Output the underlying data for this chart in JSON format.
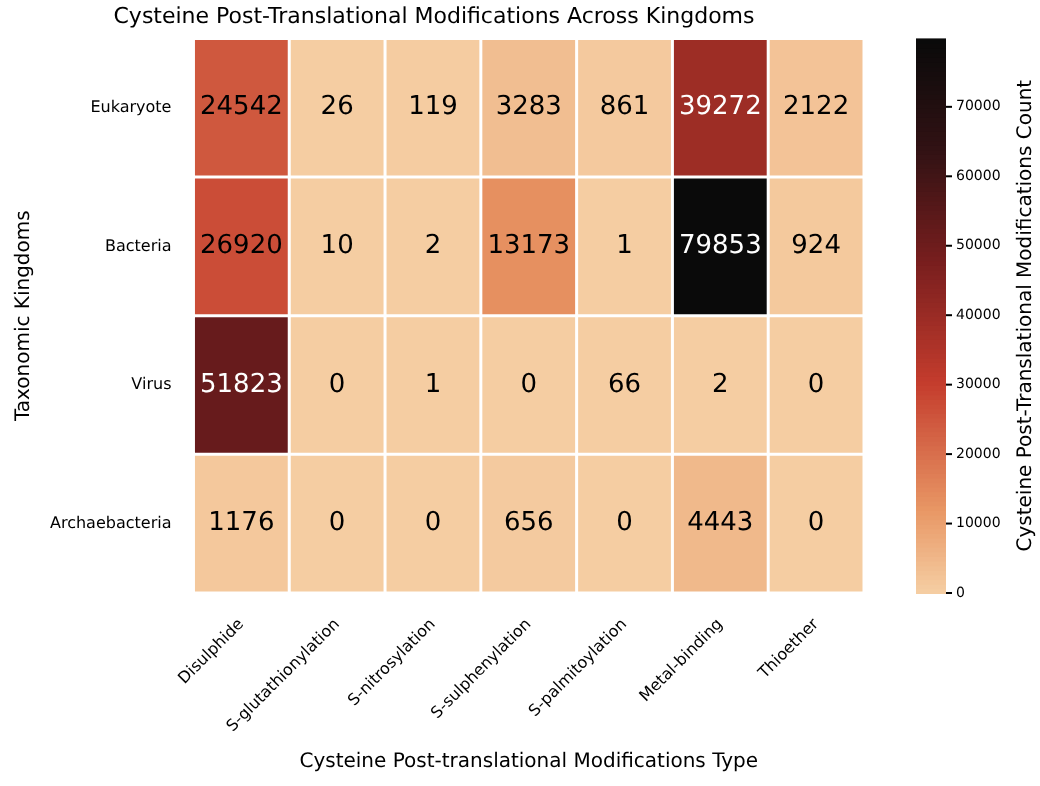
{
  "chart_data": {
    "type": "heatmap",
    "title": "Cysteine Post-Translational Modifications Across Kingdoms",
    "xlabel": "Cysteine Post-translational Modifications Type",
    "ylabel": "Taxonomic Kingdoms",
    "clabel": "Cysteine Post-Translational Modifications Count",
    "categories": [
      "Disulphide",
      "S-glutathionylation",
      "S-nitrosylation",
      "S-sulphenylation",
      "S-palmitoylation",
      "Metal-binding",
      "Thioether"
    ],
    "y_categories": [
      "Eukaryote",
      "Bacteria",
      "Virus",
      "Archaebacteria"
    ],
    "cells": [
      [
        24542,
        26,
        119,
        3283,
        861,
        39272,
        2122
      ],
      [
        26920,
        10,
        2,
        13173,
        1,
        79853,
        924
      ],
      [
        51823,
        0,
        1,
        0,
        66,
        2,
        0
      ],
      [
        1176,
        0,
        0,
        656,
        0,
        4443,
        0
      ]
    ],
    "clim": [
      0,
      79853
    ],
    "cticks": [
      0,
      10000,
      20000,
      30000,
      40000,
      50000,
      60000,
      70000
    ],
    "data_labels": true
  }
}
